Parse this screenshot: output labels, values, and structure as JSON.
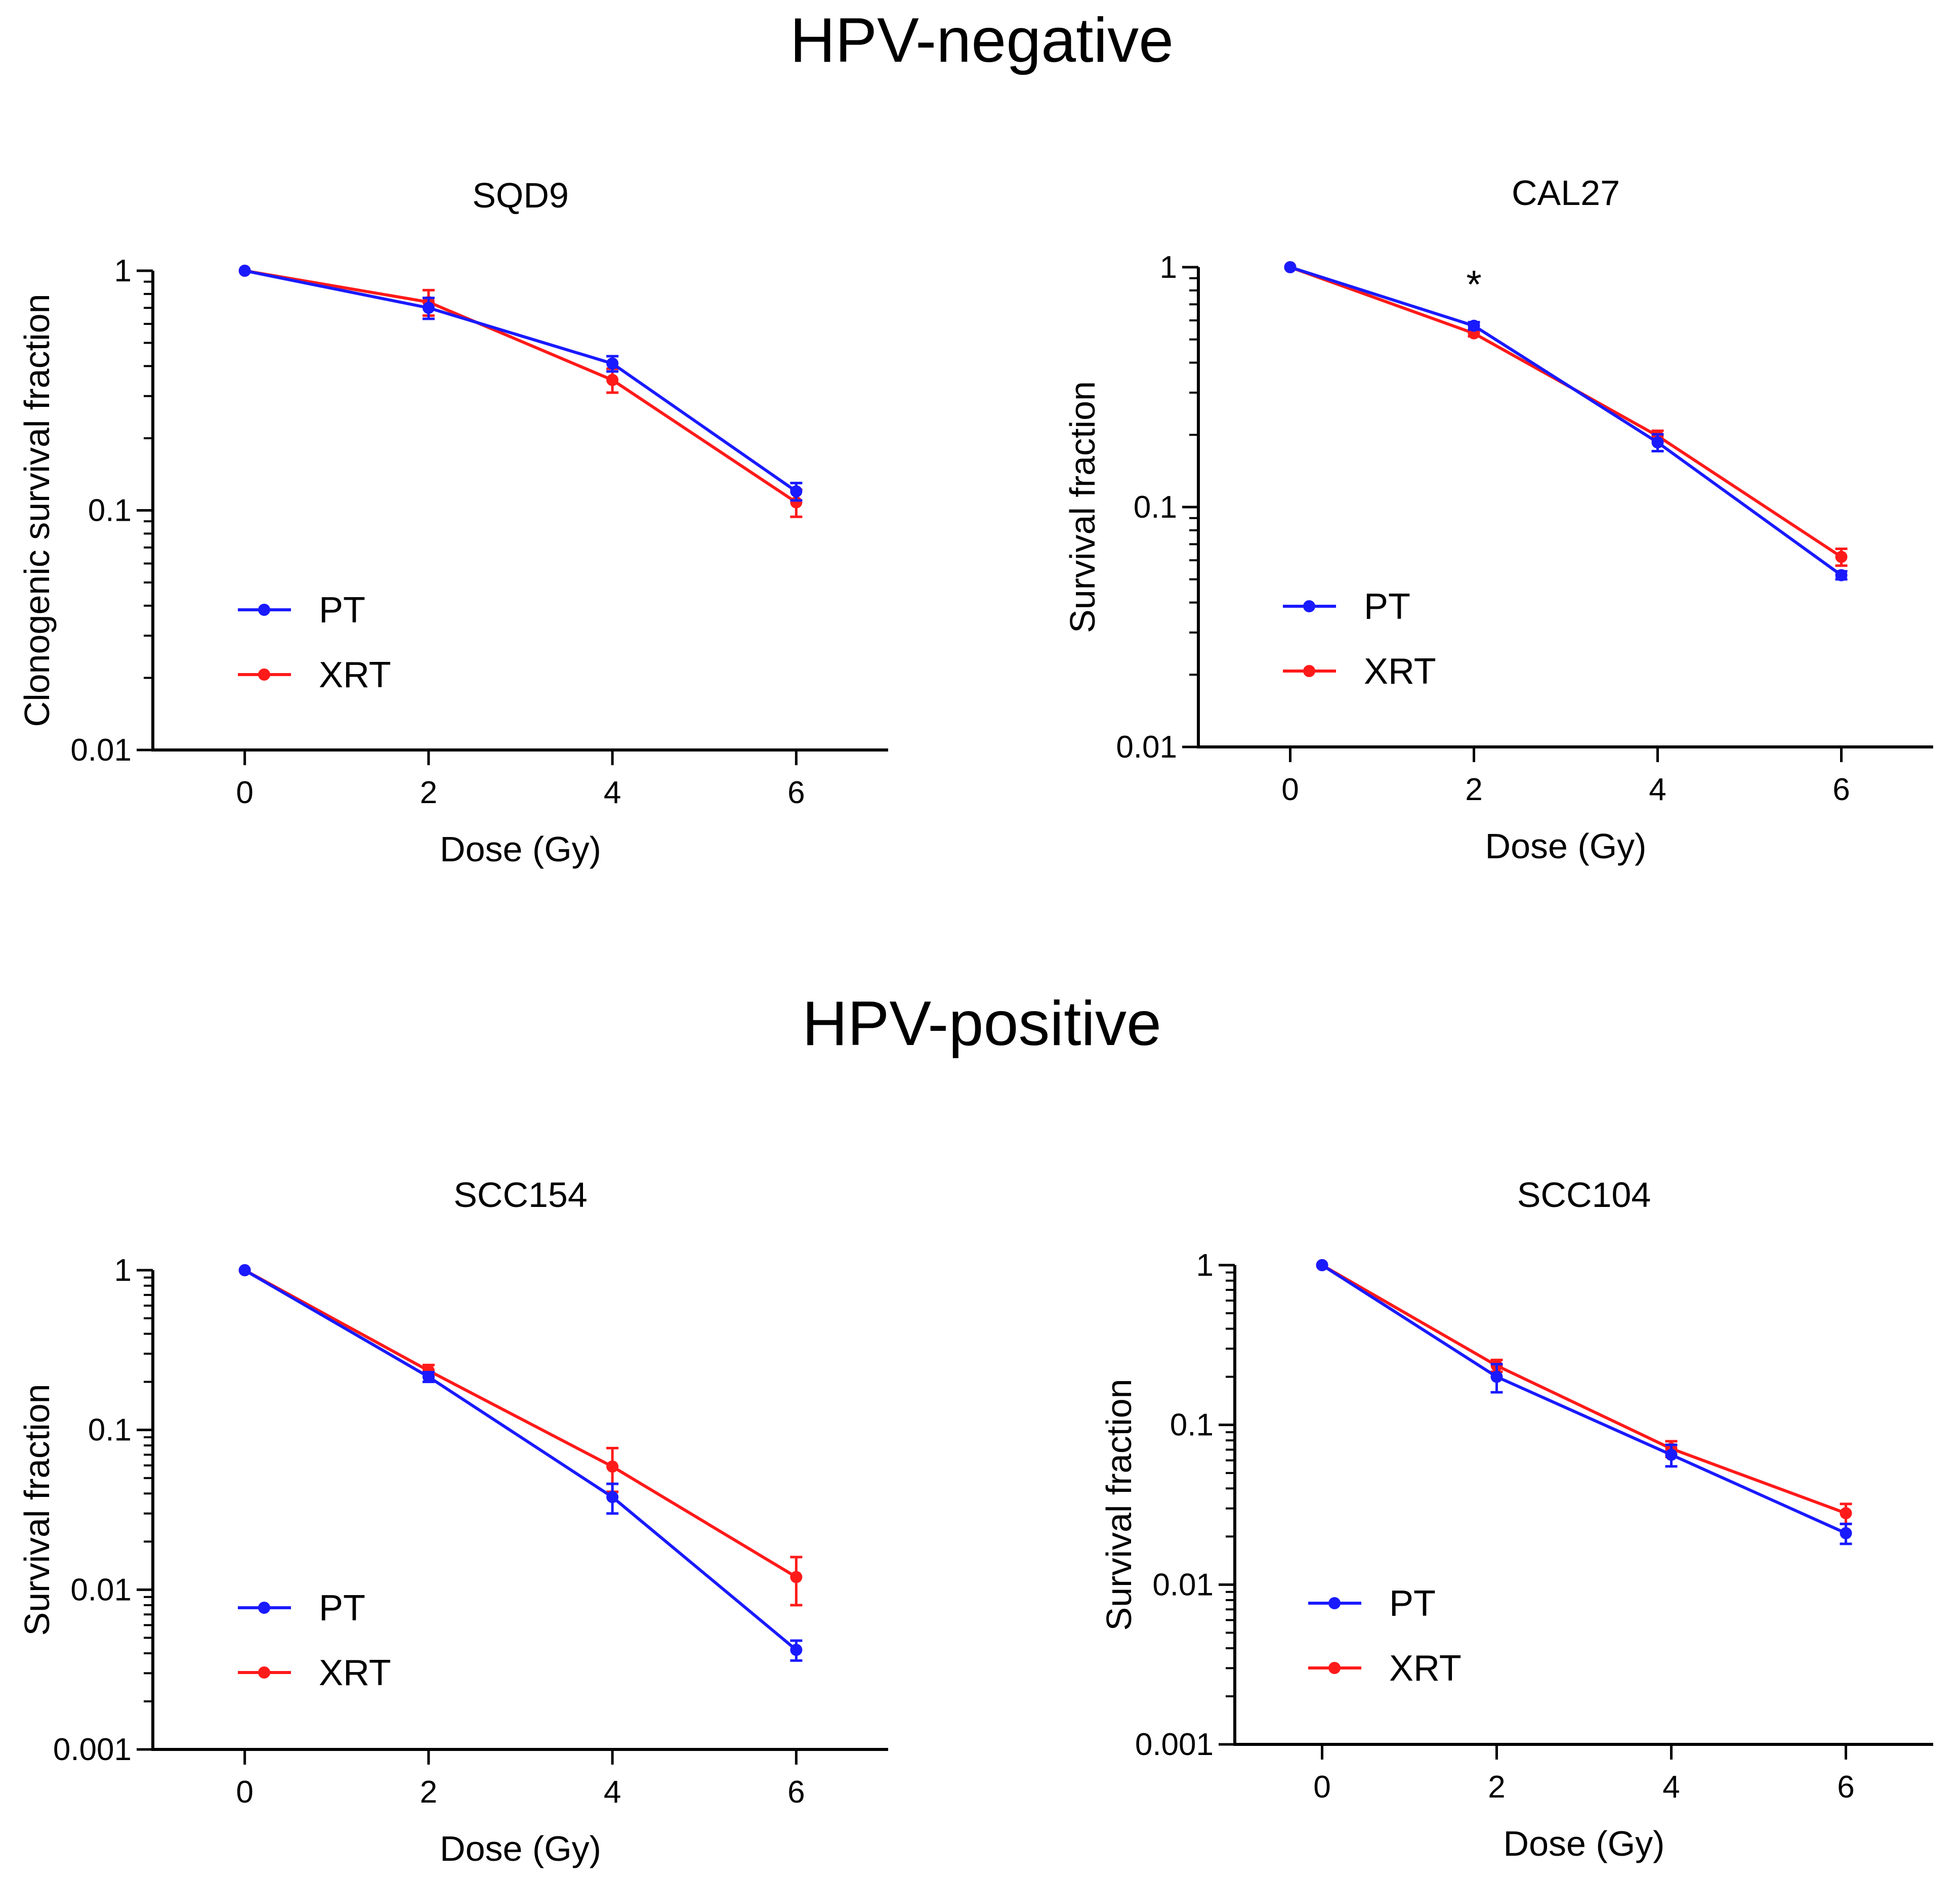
{
  "figure": {
    "titles": [
      "HPV-negative",
      "HPV-positive"
    ]
  },
  "chart_data": [
    {
      "type": "line",
      "title": "SQD9",
      "section": "HPV-negative",
      "xlabel": "Dose (Gy)",
      "ylabel": "Clonogenic survival fraction",
      "yscale": "log",
      "x": [
        0,
        2,
        4,
        6
      ],
      "xlim": [
        -1,
        7
      ],
      "xticks": [
        "0",
        "2",
        "4",
        "6"
      ],
      "ylim": [
        0.01,
        1
      ],
      "yticks": [
        "0.01",
        "0.1",
        "1"
      ],
      "series": [
        {
          "name": "PT",
          "color": "#1a1aff",
          "values": [
            1,
            0.7,
            0.41,
            0.12
          ],
          "errors": [
            0,
            0.07,
            0.03,
            0.01
          ]
        },
        {
          "name": "XRT",
          "color": "#ff1a1a",
          "values": [
            1,
            0.74,
            0.35,
            0.108
          ],
          "errors": [
            0,
            0.09,
            0.04,
            0.014
          ]
        }
      ],
      "legend": "bottom-left",
      "annotations": []
    },
    {
      "type": "line",
      "title": "CAL27",
      "section": "HPV-negative",
      "xlabel": "Dose (Gy)",
      "ylabel": "Survival fraction",
      "yscale": "log",
      "x": [
        0,
        2,
        4,
        6
      ],
      "xlim": [
        -1,
        7
      ],
      "xticks": [
        "0",
        "2",
        "4",
        "6"
      ],
      "ylim": [
        0.01,
        1
      ],
      "yticks": [
        "0.01",
        "0.1",
        "1"
      ],
      "series": [
        {
          "name": "PT",
          "color": "#1a1aff",
          "values": [
            1,
            0.57,
            0.186,
            0.052
          ],
          "errors": [
            0,
            0.02,
            0.015,
            0.002
          ]
        },
        {
          "name": "XRT",
          "color": "#ff1a1a",
          "values": [
            1,
            0.53,
            0.198,
            0.062
          ],
          "errors": [
            0,
            0.015,
            0.01,
            0.005
          ]
        }
      ],
      "legend": "bottom-left",
      "annotations": [
        {
          "text": "*",
          "x": 2
        }
      ]
    },
    {
      "type": "line",
      "title": "SCC154",
      "section": "HPV-positive",
      "xlabel": "Dose (Gy)",
      "ylabel": "Survival fraction",
      "yscale": "log",
      "x": [
        0,
        2,
        4,
        6
      ],
      "xlim": [
        -1,
        7
      ],
      "xticks": [
        "0",
        "2",
        "4",
        "6"
      ],
      "ylim": [
        0.001,
        1
      ],
      "yticks": [
        "0.001",
        "0.01",
        "0.1",
        "1"
      ],
      "series": [
        {
          "name": "PT",
          "color": "#1a1aff",
          "values": [
            1,
            0.215,
            0.038,
            0.0042
          ],
          "errors": [
            0,
            0.015,
            0.008,
            0.0006
          ]
        },
        {
          "name": "XRT",
          "color": "#ff1a1a",
          "values": [
            1,
            0.235,
            0.059,
            0.012
          ],
          "errors": [
            0,
            0.02,
            0.018,
            0.004
          ]
        }
      ],
      "legend": "bottom-left",
      "annotations": []
    },
    {
      "type": "line",
      "title": "SCC104",
      "section": "HPV-positive",
      "xlabel": "Dose (Gy)",
      "ylabel": "Survival fraction",
      "yscale": "log",
      "x": [
        0,
        2,
        4,
        6
      ],
      "xlim": [
        -1,
        7
      ],
      "xticks": [
        "0",
        "2",
        "4",
        "6"
      ],
      "ylim": [
        0.001,
        1
      ],
      "yticks": [
        "0.001",
        "0.01",
        "0.1",
        "1"
      ],
      "series": [
        {
          "name": "PT",
          "color": "#1a1aff",
          "values": [
            1,
            0.2,
            0.065,
            0.021
          ],
          "errors": [
            0,
            0.04,
            0.01,
            0.003
          ]
        },
        {
          "name": "XRT",
          "color": "#ff1a1a",
          "values": [
            1,
            0.235,
            0.071,
            0.028
          ],
          "errors": [
            0,
            0.02,
            0.008,
            0.004
          ]
        }
      ],
      "legend": "bottom-left",
      "annotations": []
    }
  ]
}
